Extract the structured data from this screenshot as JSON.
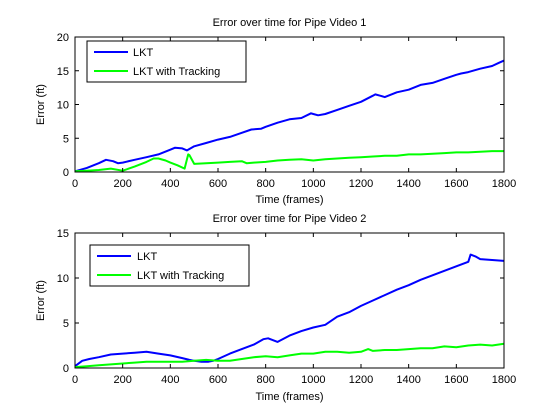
{
  "figure": {
    "background": "#ffffff"
  },
  "chart_data": [
    {
      "type": "line",
      "title": "Error over time for Pipe Video 1",
      "xlabel": "Time (frames)",
      "ylabel": "Error (ft)",
      "xlim": [
        0,
        1800
      ],
      "ylim": [
        0,
        20
      ],
      "xticks": [
        0,
        200,
        400,
        600,
        800,
        1000,
        1200,
        1400,
        1600,
        1800
      ],
      "yticks": [
        0,
        5,
        10,
        15,
        20
      ],
      "grid": false,
      "legend": "top-left",
      "series": [
        {
          "name": "LKT",
          "color": "#0000ff",
          "x": [
            0,
            50,
            100,
            130,
            160,
            180,
            200,
            250,
            300,
            350,
            400,
            420,
            450,
            470,
            500,
            550,
            600,
            650,
            700,
            740,
            780,
            800,
            850,
            900,
            950,
            990,
            1000,
            1020,
            1050,
            1100,
            1150,
            1200,
            1250,
            1260,
            1280,
            1300,
            1350,
            1400,
            1450,
            1500,
            1550,
            1600,
            1620,
            1650,
            1700,
            1750,
            1780,
            1800
          ],
          "y": [
            0.1,
            0.6,
            1.3,
            1.8,
            1.6,
            1.3,
            1.4,
            1.8,
            2.2,
            2.6,
            3.3,
            3.6,
            3.5,
            3.2,
            3.8,
            4.3,
            4.8,
            5.2,
            5.8,
            6.3,
            6.4,
            6.7,
            7.3,
            7.8,
            8.0,
            8.7,
            8.6,
            8.4,
            8.6,
            9.2,
            9.8,
            10.4,
            11.3,
            11.5,
            11.3,
            11.1,
            11.8,
            12.2,
            12.9,
            13.2,
            13.8,
            14.4,
            14.6,
            14.8,
            15.3,
            15.7,
            16.2,
            16.5
          ]
        },
        {
          "name": "LKT with Tracking",
          "color": "#00ff00",
          "x": [
            0,
            50,
            100,
            150,
            200,
            250,
            300,
            330,
            350,
            380,
            400,
            430,
            460,
            475,
            480,
            500,
            550,
            600,
            650,
            700,
            720,
            750,
            800,
            850,
            900,
            950,
            1000,
            1050,
            1100,
            1150,
            1200,
            1250,
            1300,
            1350,
            1400,
            1450,
            1500,
            1550,
            1600,
            1650,
            1700,
            1750,
            1800
          ],
          "y": [
            0.1,
            0.2,
            0.3,
            0.5,
            0.2,
            0.8,
            1.5,
            2.0,
            2.0,
            1.7,
            1.4,
            1.0,
            0.5,
            2.6,
            2.5,
            1.2,
            1.3,
            1.4,
            1.5,
            1.6,
            1.3,
            1.4,
            1.5,
            1.7,
            1.8,
            1.9,
            1.7,
            1.9,
            2.0,
            2.1,
            2.2,
            2.3,
            2.4,
            2.4,
            2.6,
            2.6,
            2.7,
            2.8,
            2.9,
            2.9,
            3.0,
            3.1,
            3.1
          ]
        }
      ]
    },
    {
      "type": "line",
      "title": "Error over time for Pipe Video 2",
      "xlabel": "Time (frames)",
      "ylabel": "Error (ft)",
      "xlim": [
        0,
        1800
      ],
      "ylim": [
        0,
        15
      ],
      "xticks": [
        0,
        200,
        400,
        600,
        800,
        1000,
        1200,
        1400,
        1600,
        1800
      ],
      "yticks": [
        0,
        5,
        10,
        15
      ],
      "grid": false,
      "legend": "top-left",
      "series": [
        {
          "name": "LKT",
          "color": "#0000ff",
          "x": [
            0,
            30,
            60,
            100,
            150,
            200,
            250,
            300,
            350,
            400,
            450,
            480,
            500,
            530,
            560,
            580,
            600,
            650,
            700,
            750,
            790,
            810,
            850,
            900,
            950,
            1000,
            1050,
            1100,
            1150,
            1200,
            1250,
            1300,
            1350,
            1400,
            1450,
            1500,
            1550,
            1600,
            1650,
            1660,
            1680,
            1700,
            1750,
            1800
          ],
          "y": [
            0.2,
            0.8,
            1.0,
            1.2,
            1.5,
            1.6,
            1.7,
            1.8,
            1.6,
            1.4,
            1.1,
            0.9,
            0.8,
            0.7,
            0.7,
            0.8,
            1.0,
            1.6,
            2.1,
            2.6,
            3.2,
            3.3,
            2.9,
            3.6,
            4.1,
            4.5,
            4.8,
            5.7,
            6.2,
            6.9,
            7.5,
            8.1,
            8.7,
            9.2,
            9.8,
            10.3,
            10.8,
            11.3,
            11.8,
            12.6,
            12.4,
            12.1,
            12.0,
            11.9
          ]
        },
        {
          "name": "LKT with Tracking",
          "color": "#00ff00",
          "x": [
            0,
            50,
            100,
            150,
            200,
            250,
            300,
            350,
            400,
            450,
            500,
            550,
            600,
            650,
            700,
            750,
            800,
            850,
            900,
            950,
            1000,
            1050,
            1100,
            1150,
            1200,
            1230,
            1250,
            1300,
            1350,
            1400,
            1450,
            1500,
            1550,
            1600,
            1650,
            1700,
            1750,
            1800
          ],
          "y": [
            0.1,
            0.2,
            0.3,
            0.4,
            0.5,
            0.6,
            0.7,
            0.7,
            0.7,
            0.7,
            0.8,
            0.9,
            0.8,
            0.8,
            1.0,
            1.2,
            1.3,
            1.2,
            1.4,
            1.6,
            1.6,
            1.8,
            1.8,
            1.7,
            1.8,
            2.1,
            1.9,
            2.0,
            2.0,
            2.1,
            2.2,
            2.2,
            2.4,
            2.3,
            2.5,
            2.6,
            2.5,
            2.7
          ]
        }
      ]
    }
  ]
}
